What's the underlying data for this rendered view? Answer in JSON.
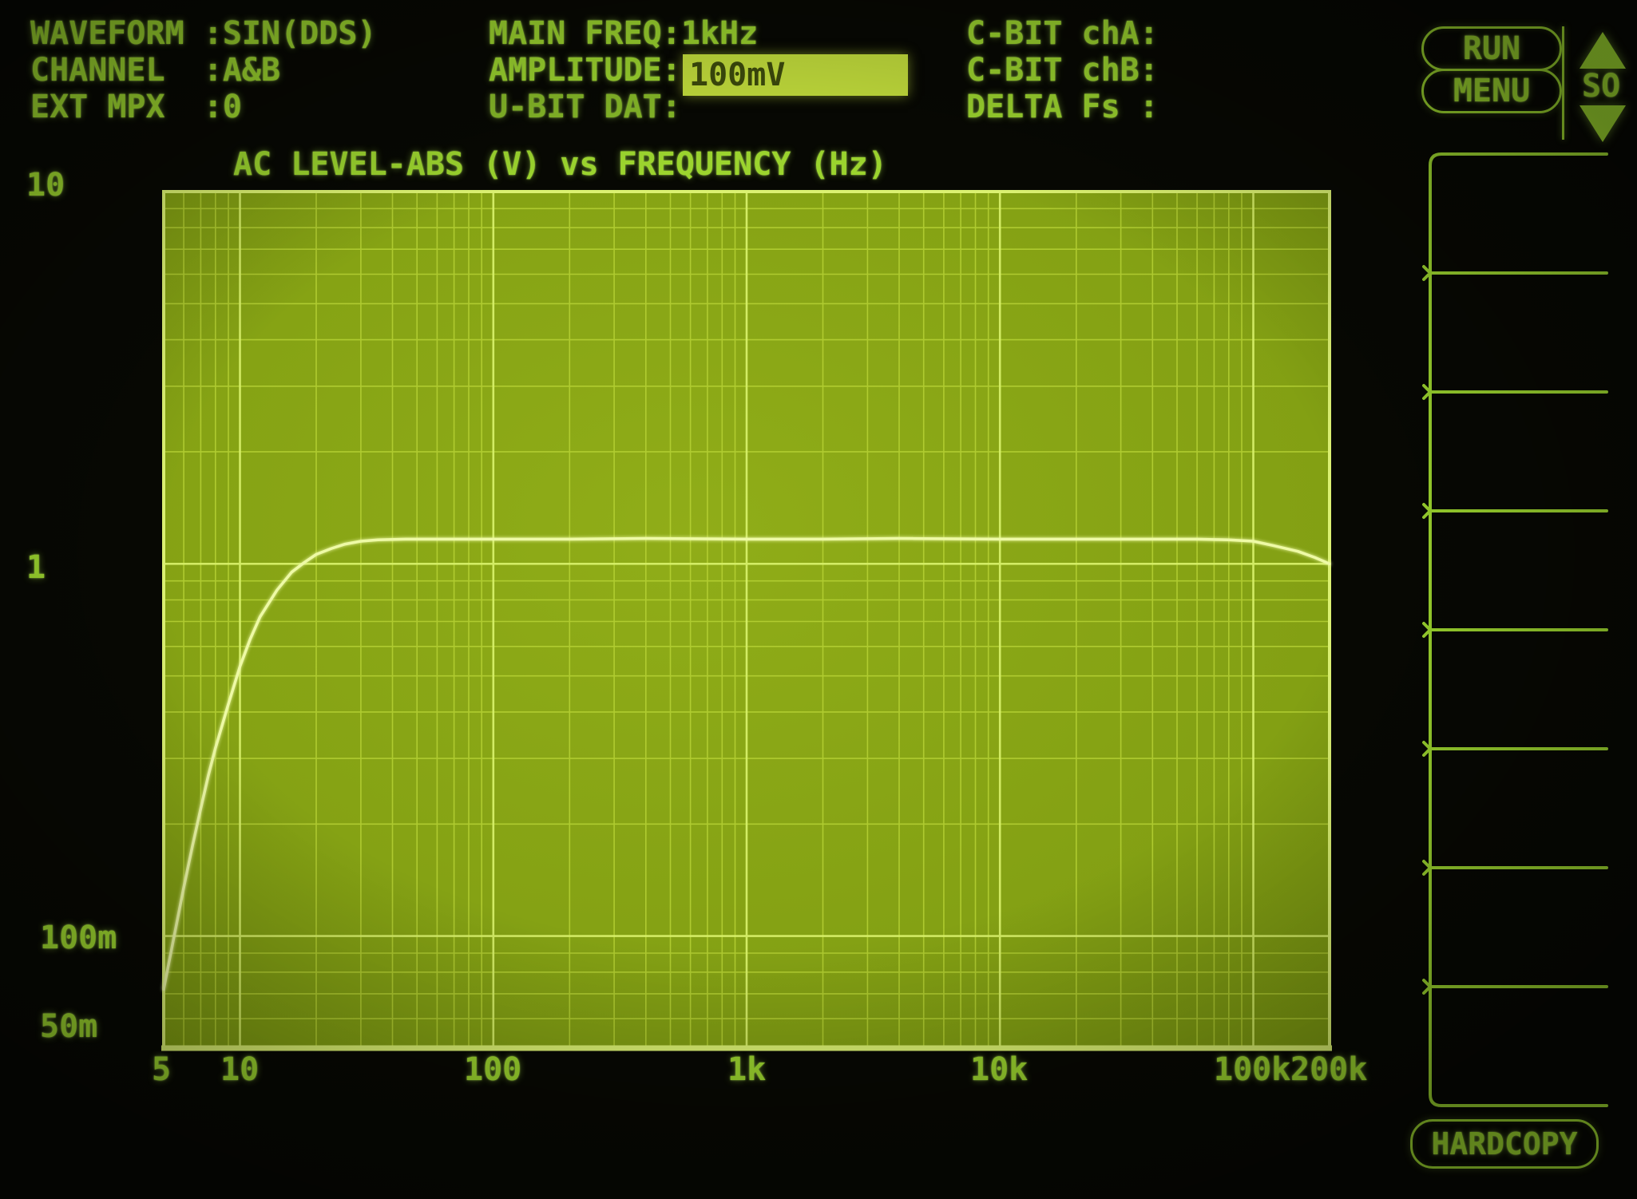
{
  "colors": {
    "phosphor": "#9bd42e",
    "phosphor_bright": "#d6ef68",
    "plot_fill_center": "#90ad18",
    "plot_fill_edge": "#7d9a11",
    "grid_minor": "#b9d537",
    "grid_major": "#d6ef68",
    "frame": "#dbf172",
    "curve": "#eefaa6",
    "highlight_fill": "#c3de3c",
    "inverse_text": "#3d4b0c",
    "background": "#070803"
  },
  "panel": {
    "left_rows": [
      "WAVEFORM :SIN(DDS)",
      "CHANNEL  :A&B",
      "EXT MPX  :0"
    ],
    "mid_rows": [
      "MAIN FREQ:1kHz",
      "AMPLITUDE:",
      "U-BIT DAT:"
    ],
    "amplitude_value": "100mV",
    "right_rows": [
      "C-BIT chA:",
      "C-BIT chB:",
      "DELTA Fs :"
    ]
  },
  "controls": {
    "run_label": "RUN",
    "menu_label": "MENU",
    "scroll_indicator": "SO",
    "hardcopy_label": "HARDCOPY"
  },
  "softkey_slots": 8,
  "chart_data": {
    "type": "line",
    "scale": "log-log",
    "title": "AC LEVEL-ABS (V) vs FREQUENCY (Hz)",
    "xlabel": "FREQUENCY (Hz)",
    "ylabel": "AC LEVEL-ABS (V)",
    "xlim": [
      5,
      200000
    ],
    "ylim": [
      0.05,
      10
    ],
    "grid": "full log decade grid, minor lines 2-9 each decade",
    "legend": "none",
    "x_tick_labels": [
      "5",
      "10",
      "100",
      "1k",
      "10k",
      "100k",
      "200k"
    ],
    "x_tick_values": [
      5,
      10,
      100,
      1000,
      10000,
      100000,
      200000
    ],
    "y_tick_labels": [
      "10",
      "1",
      "100m",
      "50m"
    ],
    "y_tick_values": [
      10,
      1,
      0.1,
      0.05
    ],
    "series": [
      {
        "name": "AC level sweep (high-pass response, flat ~1.17 V, roll-off above 100k)",
        "points": [
          [
            5,
            0.072
          ],
          [
            5.5,
            0.1
          ],
          [
            6,
            0.135
          ],
          [
            6.5,
            0.175
          ],
          [
            7,
            0.22
          ],
          [
            7.5,
            0.27
          ],
          [
            8,
            0.32
          ],
          [
            9,
            0.42
          ],
          [
            10,
            0.53
          ],
          [
            11,
            0.63
          ],
          [
            12,
            0.72
          ],
          [
            14,
            0.85
          ],
          [
            16,
            0.95
          ],
          [
            18,
            1.01
          ],
          [
            20,
            1.06
          ],
          [
            23,
            1.1
          ],
          [
            26,
            1.13
          ],
          [
            30,
            1.15
          ],
          [
            35,
            1.16
          ],
          [
            45,
            1.165
          ],
          [
            60,
            1.165
          ],
          [
            100,
            1.165
          ],
          [
            200,
            1.165
          ],
          [
            400,
            1.17
          ],
          [
            1000,
            1.165
          ],
          [
            2000,
            1.165
          ],
          [
            4000,
            1.17
          ],
          [
            10000,
            1.165
          ],
          [
            20000,
            1.165
          ],
          [
            40000,
            1.165
          ],
          [
            60000,
            1.165
          ],
          [
            80000,
            1.16
          ],
          [
            100000,
            1.15
          ],
          [
            120000,
            1.12
          ],
          [
            150000,
            1.08
          ],
          [
            175000,
            1.04
          ],
          [
            200000,
            1.0
          ]
        ]
      }
    ]
  }
}
